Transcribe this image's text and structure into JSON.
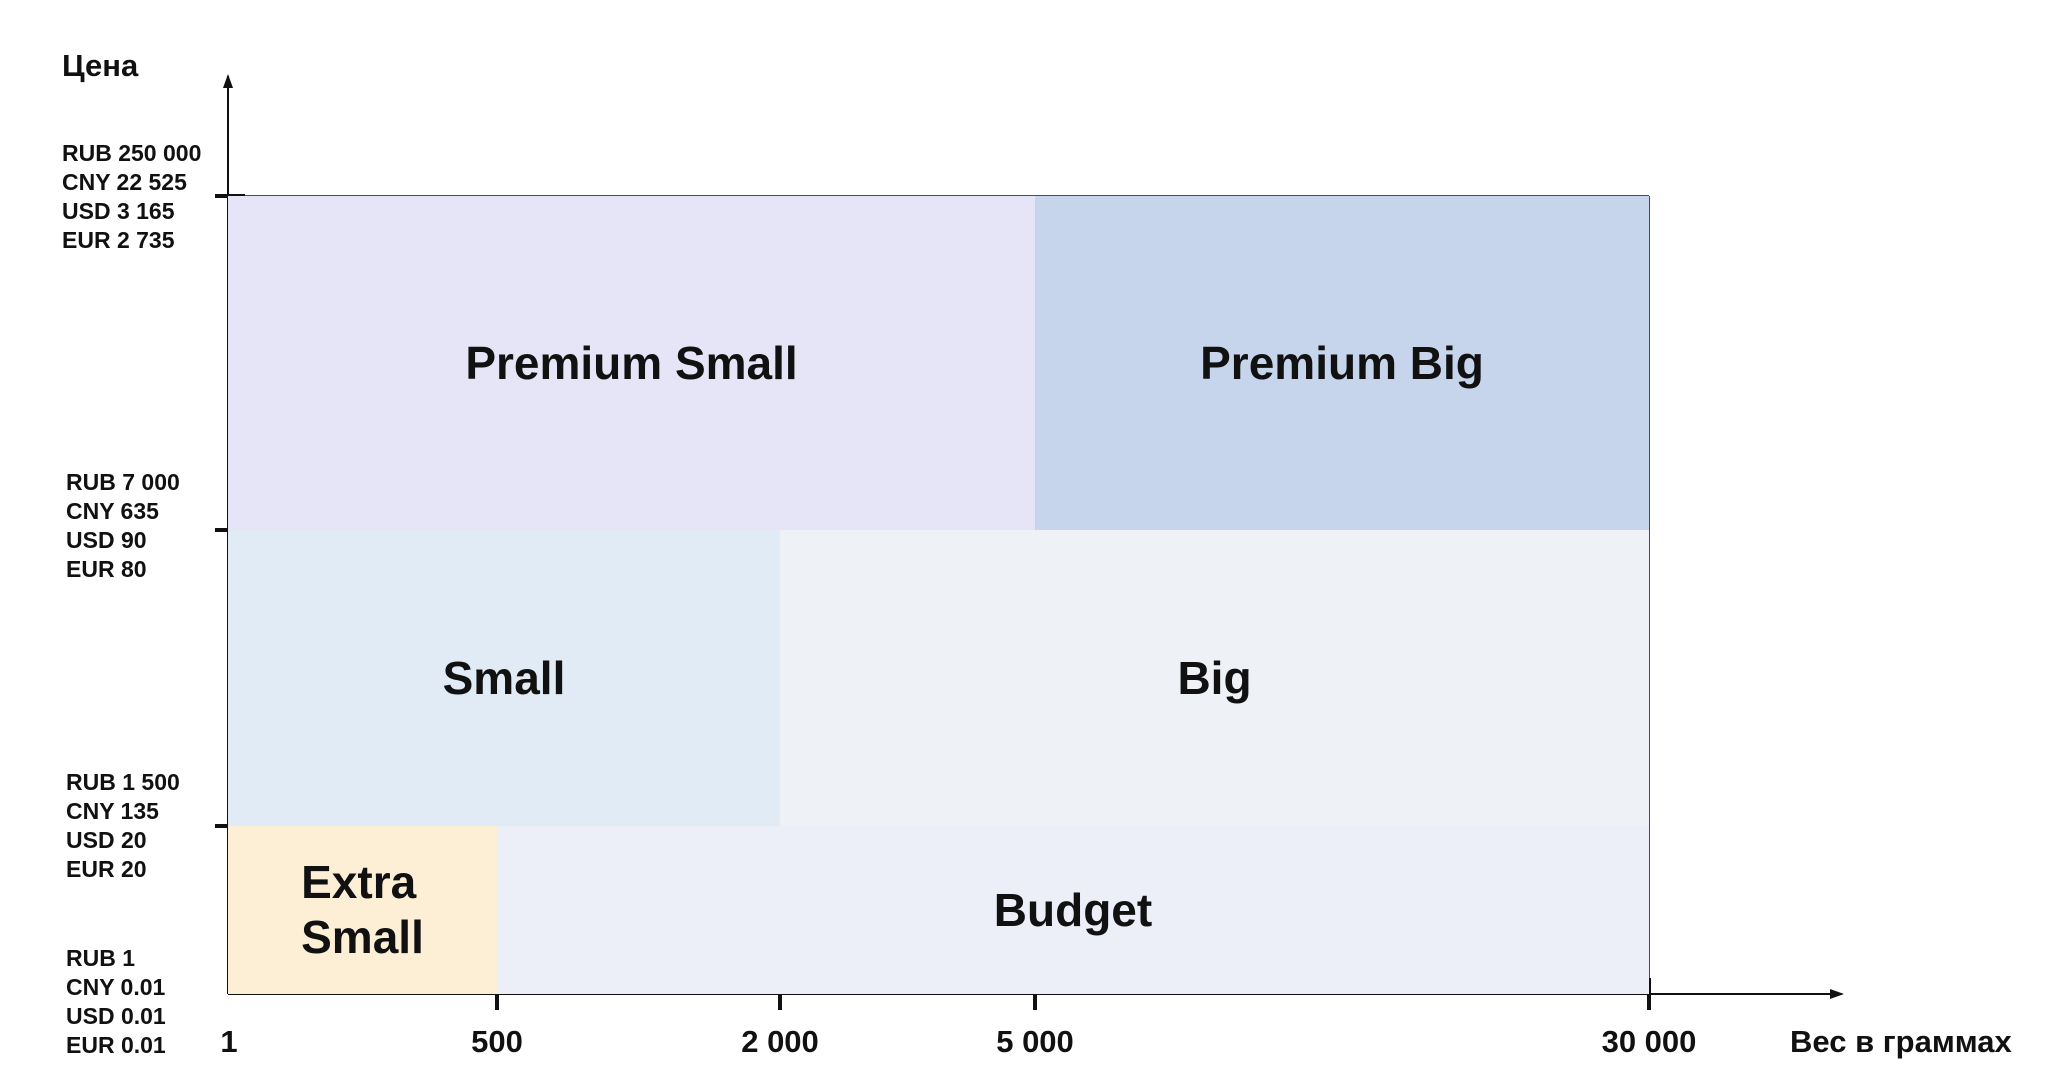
{
  "axes": {
    "y_title": "Цена",
    "x_title": "Вес в граммах"
  },
  "price_levels": [
    {
      "rub": "RUB 250 000",
      "cny": "CNY 22 525",
      "usd": "USD 3 165",
      "eur": "EUR 2 735"
    },
    {
      "rub": "RUB 7 000",
      "cny": "CNY 635",
      "usd": "USD 90",
      "eur": "EUR 80"
    },
    {
      "rub": "RUB 1 500",
      "cny": "CNY 135",
      "usd": "USD 20",
      "eur": "EUR 20"
    },
    {
      "rub": "RUB 1",
      "cny": "CNY 0.01",
      "usd": "USD 0.01",
      "eur": "EUR 0.01"
    }
  ],
  "weight_ticks": [
    "1",
    "500",
    "2 000",
    "5 000",
    "30 000"
  ],
  "zones": [
    {
      "name": "Premium Small",
      "color": "#E5E5F7"
    },
    {
      "name": "Premium Big",
      "color": "#C6D5EB"
    },
    {
      "name": "Small",
      "color": "#E0EBF6"
    },
    {
      "name": "Big",
      "color": "#EEF2F6"
    },
    {
      "name": "Extra\nSmall",
      "color": "#FDEFD6"
    },
    {
      "name": "Budget",
      "color": "#ECEFF8"
    }
  ]
}
